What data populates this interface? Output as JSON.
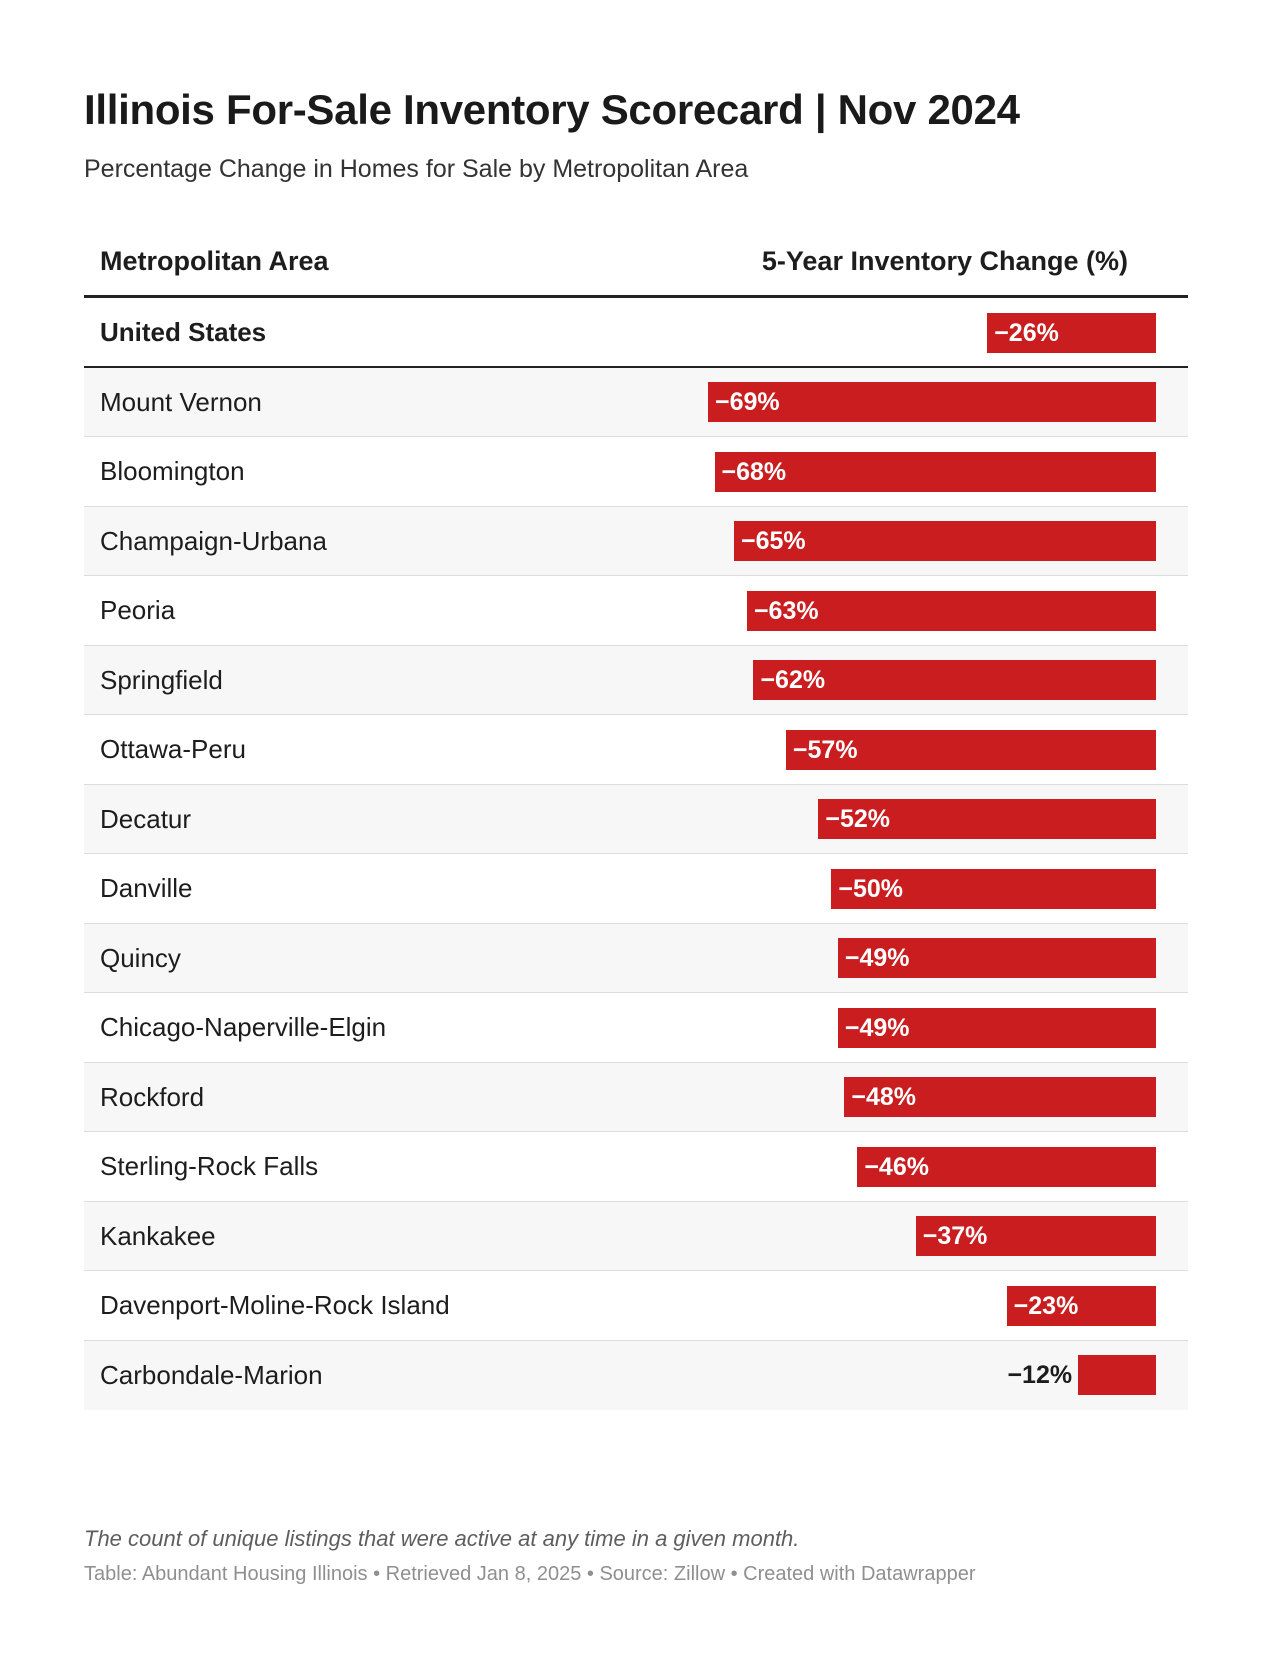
{
  "title": "Illinois For-Sale Inventory Scorecard | Nov 2024",
  "subtitle": "Percentage Change in Homes for Sale by Metropolitan Area",
  "header": {
    "area_label": "Metropolitan Area",
    "change_label": "5-Year Inventory Change (%)"
  },
  "note": "The count of unique listings that were active at any time in a given month.",
  "footer": "Table: Abundant Housing Illinois • Retrieved Jan 8, 2025 • Source: Zillow • Created with Datawrapper",
  "colors": {
    "bar": "#c91d1f"
  },
  "chart_data": {
    "type": "bar",
    "orientation": "horizontal",
    "xlim": [
      -69,
      0
    ],
    "categories": [
      "United States",
      "Mount Vernon",
      "Bloomington",
      "Champaign-Urbana",
      "Peoria",
      "Springfield",
      "Ottawa-Peru",
      "Decatur",
      "Danville",
      "Quincy",
      "Chicago-Naperville-Elgin",
      "Rockford",
      "Sterling-Rock Falls",
      "Kankakee",
      "Davenport-Moline-Rock Island",
      "Carbondale-Marion"
    ],
    "values": [
      -26,
      -69,
      -68,
      -65,
      -63,
      -62,
      -57,
      -52,
      -50,
      -49,
      -49,
      -48,
      -46,
      -37,
      -23,
      -12
    ],
    "labels": [
      "−26%",
      "−69%",
      "−68%",
      "−65%",
      "−63%",
      "−62%",
      "−57%",
      "−52%",
      "−50%",
      "−49%",
      "−49%",
      "−48%",
      "−46%",
      "−37%",
      "−23%",
      "−12%"
    ]
  }
}
